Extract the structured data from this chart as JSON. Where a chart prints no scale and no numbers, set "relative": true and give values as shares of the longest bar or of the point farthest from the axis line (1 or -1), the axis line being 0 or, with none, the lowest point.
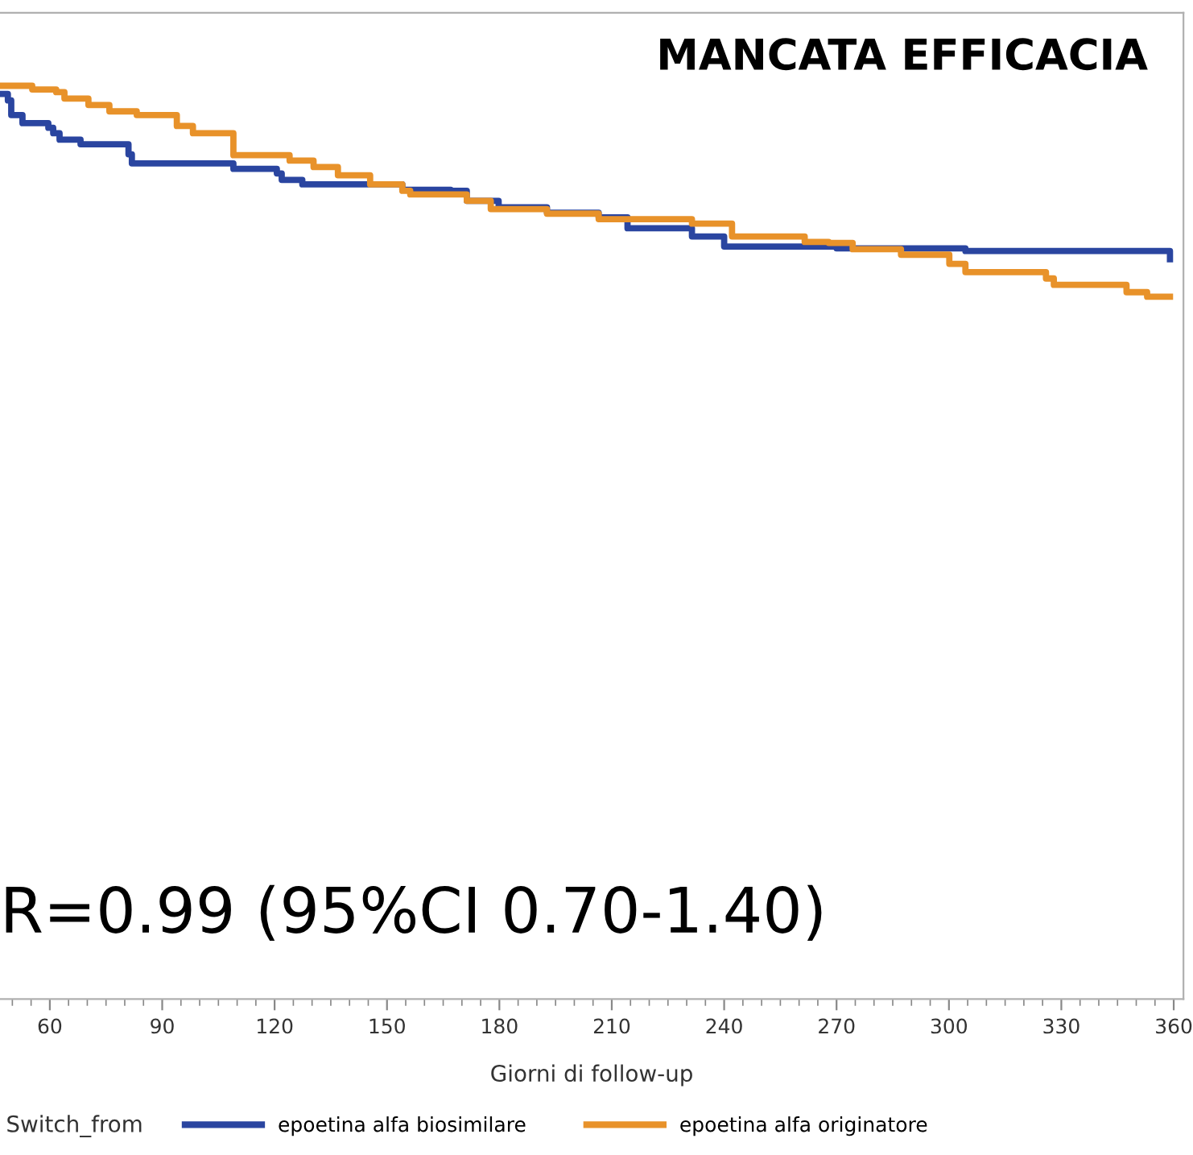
{
  "chart_data": {
    "type": "step",
    "relative": true,
    "title": "MANCATA EFFICACIA",
    "xlabel": "Giorni di follow-up",
    "legend_title": "Switch_from",
    "legend": "bottom",
    "grid": false,
    "marker": "none",
    "line_style": "solid",
    "annotations": [
      "R=0.99 (95%CI 0.70-1.40)"
    ],
    "xlim": [
      46.7,
      362.6
    ],
    "xticks": [
      60,
      90,
      120,
      150,
      180,
      210,
      240,
      270,
      300,
      330,
      360
    ],
    "series": [
      {
        "name": "epoetina alfa biosimilare",
        "color": "#2a45a0",
        "x": [
          46.7,
          48.8,
          49.7,
          52.7,
          59.6,
          60.9,
          62.6,
          68.2,
          81.0,
          81.9,
          109.0,
          120.6,
          121.9,
          127.4,
          154.1,
          167.0,
          171.3,
          179.8,
          192.7,
          206.5,
          214.2,
          231.4,
          240.0,
          270.0,
          304.4,
          359.0
        ],
        "values": [
          0.991,
          0.984,
          0.968,
          0.959,
          0.954,
          0.948,
          0.941,
          0.936,
          0.925,
          0.915,
          0.909,
          0.904,
          0.897,
          0.892,
          0.886,
          0.885,
          0.874,
          0.867,
          0.861,
          0.856,
          0.844,
          0.835,
          0.824,
          0.822,
          0.819,
          0.81
        ]
      },
      {
        "name": "epoetina alfa originatore",
        "color": "#e8922a",
        "x": [
          46.7,
          55.3,
          61.7,
          63.9,
          70.3,
          75.9,
          83.2,
          93.9,
          98.2,
          109.0,
          124.0,
          130.4,
          136.9,
          145.5,
          154.1,
          156.2,
          171.3,
          177.7,
          192.7,
          206.5,
          225.0,
          231.4,
          242.1,
          261.5,
          267.9,
          274.3,
          287.2,
          300.1,
          304.4,
          325.9,
          328.0,
          347.4,
          352.9,
          359.0
        ],
        "values": [
          1.0,
          0.996,
          0.993,
          0.986,
          0.979,
          0.972,
          0.968,
          0.956,
          0.948,
          0.924,
          0.918,
          0.911,
          0.902,
          0.892,
          0.885,
          0.881,
          0.874,
          0.865,
          0.86,
          0.854,
          0.854,
          0.849,
          0.835,
          0.829,
          0.828,
          0.821,
          0.815,
          0.805,
          0.796,
          0.789,
          0.782,
          0.774,
          0.769,
          0.769
        ]
      }
    ]
  }
}
